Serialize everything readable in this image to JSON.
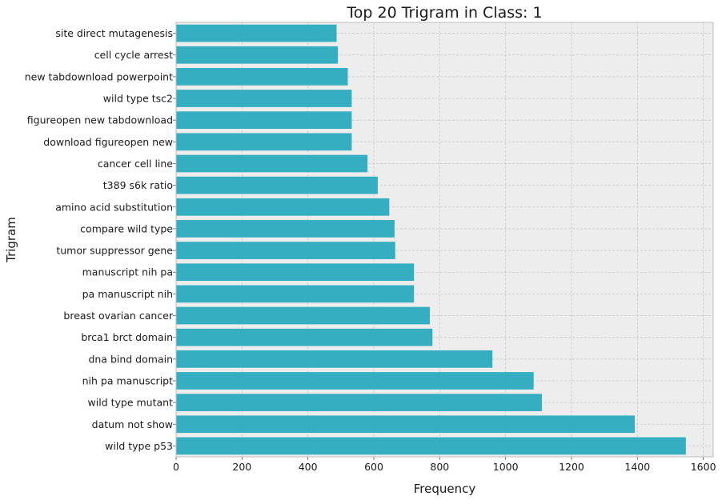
{
  "chart_data": {
    "type": "bar",
    "orientation": "horizontal",
    "title": "Top 20 Trigram in Class: 1",
    "xlabel": "Frequency",
    "ylabel": "Trigram",
    "xlim": [
      0,
      1630
    ],
    "xticks": [
      0,
      200,
      400,
      600,
      800,
      1000,
      1200,
      1400,
      1600
    ],
    "grid": true,
    "bar_color": "#35AEC1",
    "background_color": "#EDEDED",
    "categories": [
      "site direct mutagenesis",
      "cell cycle arrest",
      "new tabdownload powerpoint",
      "wild type tsc2",
      "figureopen new tabdownload",
      "download figureopen new",
      "cancer cell line",
      "t389 s6k ratio",
      "amino acid substitution",
      "compare wild type",
      "tumor suppressor gene",
      "manuscript nih pa",
      "pa manuscript nih",
      "breast ovarian cancer",
      "brca1 brct domain",
      "dna bind domain",
      "nih pa manuscript",
      "wild type mutant",
      "datum not show",
      "wild type p53"
    ],
    "values": [
      487,
      491,
      521,
      533,
      533,
      533,
      581,
      612,
      647,
      663,
      665,
      722,
      722,
      770,
      778,
      960,
      1085,
      1110,
      1392,
      1547
    ]
  }
}
